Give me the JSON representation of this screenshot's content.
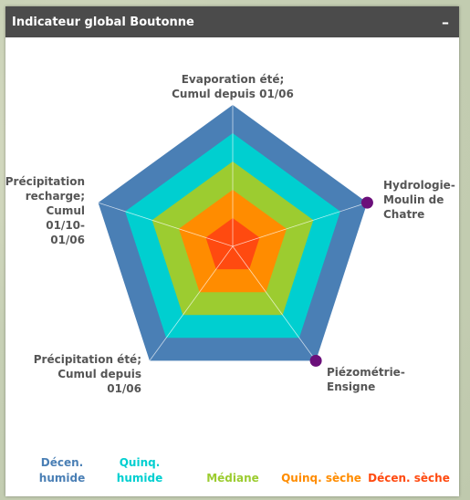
{
  "panel": {
    "title": "Indicateur global Boutonne",
    "collapse_label": "–"
  },
  "colors": {
    "decen_humide": "#4a7fb5",
    "quinq_humide": "#00cfd0",
    "mediane": "#9ccc30",
    "quinq_seche": "#ff8c00",
    "decen_seche": "#ff4a10",
    "marker": "#6b0f7a",
    "axis": "#ffffff"
  },
  "chart_data": {
    "type": "radar",
    "axes": [
      {
        "lines": [
          "Evaporation été;",
          "Cumul depuis 01/06"
        ]
      },
      {
        "lines": [
          "Hydrologie-",
          "Moulin de",
          "Chatre"
        ]
      },
      {
        "lines": [
          "Piézométrie-",
          "Ensigne"
        ]
      },
      {
        "lines": [
          "Précipitation été;",
          "Cumul depuis",
          "01/06"
        ]
      },
      {
        "lines": [
          "Précipitation",
          "recharge;",
          "Cumul",
          "01/10-",
          "01/06"
        ]
      }
    ],
    "bands": [
      {
        "lines": [
          "Décen.",
          "humide"
        ],
        "color_key": "decen_humide",
        "level": 5
      },
      {
        "lines": [
          "Quinq.",
          "humide"
        ],
        "color_key": "quinq_humide",
        "level": 4
      },
      {
        "lines": [
          "Médiane"
        ],
        "color_key": "mediane",
        "level": 3
      },
      {
        "lines": [
          "Quinq. sèche"
        ],
        "color_key": "quinq_seche",
        "level": 2
      },
      {
        "lines": [
          "Décen. sèche"
        ],
        "color_key": "decen_seche",
        "level": 1
      }
    ],
    "points": [
      {
        "axis": 1,
        "level": 5
      },
      {
        "axis": 2,
        "level": 5
      }
    ],
    "range": [
      0,
      5
    ]
  }
}
